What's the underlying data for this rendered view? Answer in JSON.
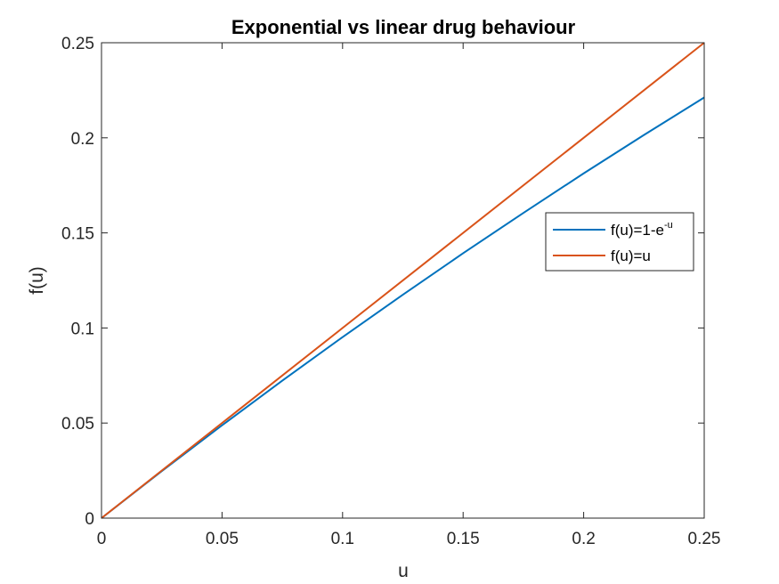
{
  "chart_data": {
    "type": "line",
    "title": "Exponential vs linear drug behaviour",
    "xlabel": "u",
    "ylabel": "f(u)",
    "xlim": [
      0,
      0.25
    ],
    "ylim": [
      0,
      0.25
    ],
    "xticks": [
      0,
      0.05,
      0.1,
      0.15,
      0.2,
      0.25
    ],
    "yticks": [
      0,
      0.05,
      0.1,
      0.15,
      0.2,
      0.25
    ],
    "xtick_labels": [
      "0",
      "0.05",
      "0.1",
      "0.15",
      "0.2",
      "0.25"
    ],
    "ytick_labels": [
      "0",
      "0.05",
      "0.1",
      "0.15",
      "0.2",
      "0.25"
    ],
    "grid": false,
    "legend_position": "right",
    "series": [
      {
        "name": "f(u)=1-e",
        "name_superscript": "-u",
        "color": "#0072BD",
        "x": [
          0,
          0.025,
          0.05,
          0.075,
          0.1,
          0.125,
          0.15,
          0.175,
          0.2,
          0.225,
          0.25
        ],
        "y": [
          0,
          0.0247,
          0.0488,
          0.0723,
          0.0952,
          0.1175,
          0.1393,
          0.1605,
          0.1813,
          0.2015,
          0.2212
        ]
      },
      {
        "name": "f(u)=u",
        "color": "#D95319",
        "x": [
          0,
          0.25
        ],
        "y": [
          0,
          0.25
        ]
      }
    ]
  }
}
